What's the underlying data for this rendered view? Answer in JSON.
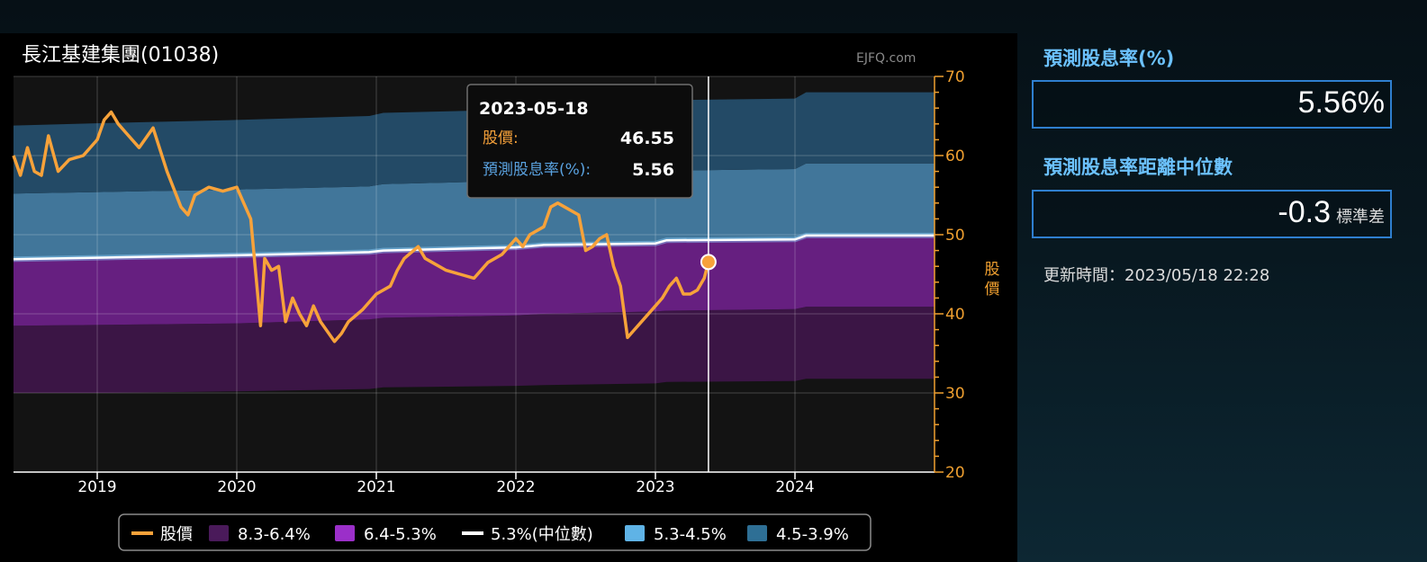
{
  "chart_data": {
    "type": "area",
    "title": "長江基建集團(01038)",
    "watermark": "EJFQ.com",
    "ylabel": "股價",
    "ylim": [
      20,
      70
    ],
    "yticks": [
      "70",
      "60",
      "50",
      "40",
      "30",
      "20"
    ],
    "xlim": [
      2018.4,
      2025.0
    ],
    "xticks": [
      "2019",
      "2020",
      "2021",
      "2022",
      "2023",
      "2024"
    ],
    "bands": {
      "x": [
        2018.4,
        2019.05,
        2020.0,
        2020.95,
        2021.05,
        2022.0,
        2022.2,
        2023.0,
        2023.08,
        2024.0,
        2024.08,
        2025.0
      ],
      "y_8_3": [
        30.0,
        30.0,
        30.2,
        30.5,
        30.7,
        30.9,
        31.0,
        31.2,
        31.4,
        31.5,
        31.8,
        31.8
      ],
      "y_6_4": [
        38.5,
        38.6,
        38.8,
        39.3,
        39.5,
        39.8,
        40.0,
        40.3,
        40.4,
        40.6,
        40.9,
        40.9
      ],
      "y_5_3": [
        46.9,
        47.1,
        47.4,
        47.8,
        48.0,
        48.4,
        48.7,
        48.9,
        49.3,
        49.4,
        49.9,
        49.9
      ],
      "y_4_5": [
        55.2,
        55.4,
        55.7,
        56.1,
        56.4,
        56.8,
        57.1,
        57.4,
        58.1,
        58.3,
        59.0,
        59.0
      ],
      "y_3_9": [
        63.8,
        64.1,
        64.5,
        65.0,
        65.4,
        65.8,
        66.2,
        66.6,
        67.0,
        67.2,
        68.0,
        68.0
      ]
    },
    "series": [
      {
        "name": "股價",
        "color": "#f7a23a",
        "x": [
          2018.4,
          2018.45,
          2018.5,
          2018.55,
          2018.6,
          2018.65,
          2018.72,
          2018.8,
          2018.9,
          2019.0,
          2019.05,
          2019.1,
          2019.15,
          2019.2,
          2019.3,
          2019.4,
          2019.5,
          2019.6,
          2019.65,
          2019.7,
          2019.8,
          2019.9,
          2020.0,
          2020.05,
          2020.1,
          2020.17,
          2020.2,
          2020.25,
          2020.3,
          2020.35,
          2020.4,
          2020.45,
          2020.5,
          2020.55,
          2020.6,
          2020.7,
          2020.75,
          2020.8,
          2020.9,
          2021.0,
          2021.05,
          2021.1,
          2021.15,
          2021.2,
          2021.3,
          2021.35,
          2021.4,
          2021.5,
          2021.6,
          2021.7,
          2021.8,
          2021.9,
          2022.0,
          2022.05,
          2022.1,
          2022.2,
          2022.25,
          2022.3,
          2022.35,
          2022.4,
          2022.45,
          2022.5,
          2022.55,
          2022.6,
          2022.65,
          2022.7,
          2022.75,
          2022.8,
          2022.85,
          2022.9,
          2023.0,
          2023.05,
          2023.1,
          2023.15,
          2023.2,
          2023.25,
          2023.3,
          2023.35,
          2023.38
        ],
        "y": [
          60.0,
          57.5,
          61.0,
          58.0,
          57.5,
          62.5,
          58.0,
          59.5,
          60.0,
          62.0,
          64.5,
          65.5,
          64.0,
          63.0,
          61.0,
          63.5,
          58.0,
          53.5,
          52.5,
          55.0,
          56.0,
          55.5,
          56.0,
          54.0,
          52.0,
          38.5,
          47.0,
          45.5,
          46.0,
          39.0,
          42.0,
          40.0,
          38.5,
          41.0,
          39.0,
          36.5,
          37.5,
          39.0,
          40.5,
          42.5,
          43.0,
          43.5,
          45.5,
          47.0,
          48.5,
          47.0,
          46.5,
          45.5,
          45.0,
          44.5,
          46.5,
          47.5,
          49.5,
          48.5,
          50.0,
          51.0,
          53.5,
          54.0,
          53.5,
          53.0,
          52.5,
          48.0,
          48.5,
          49.5,
          50.0,
          46.0,
          43.5,
          37.0,
          38.0,
          39.0,
          41.0,
          42.0,
          43.5,
          44.5,
          42.5,
          42.5,
          43.0,
          44.5,
          46.55
        ]
      }
    ],
    "cursor": {
      "x": 2023.38,
      "y": 46.55
    },
    "tooltip": {
      "date": "2023-05-18",
      "price_label": "股價:",
      "price_value": "46.55",
      "yield_label": "預測股息率(%):",
      "yield_value": "5.56"
    },
    "legend": [
      {
        "label": "股價",
        "color": "#f7a23a",
        "kind": "line"
      },
      {
        "label": "8.3-6.4%",
        "color": "#4a1a5a",
        "kind": "box"
      },
      {
        "label": "6.4-5.3%",
        "color": "#9b2fc9",
        "kind": "box"
      },
      {
        "label": "5.3%(中位數)",
        "color": "#ffffff",
        "kind": "line"
      },
      {
        "label": "5.3-4.5%",
        "color": "#5fb3e6",
        "kind": "box"
      },
      {
        "label": "4.5-3.9%",
        "color": "#2e6f95",
        "kind": "box"
      }
    ],
    "legend_position": "bottom",
    "grid": true
  },
  "side": {
    "yield_title": "預測股息率(%)",
    "yield_value": "5.56%",
    "distance_title": "預測股息率距離中位數",
    "distance_value": "-0.3",
    "distance_unit": "標準差",
    "update_text": "更新時間：2023/05/18 22:28"
  }
}
